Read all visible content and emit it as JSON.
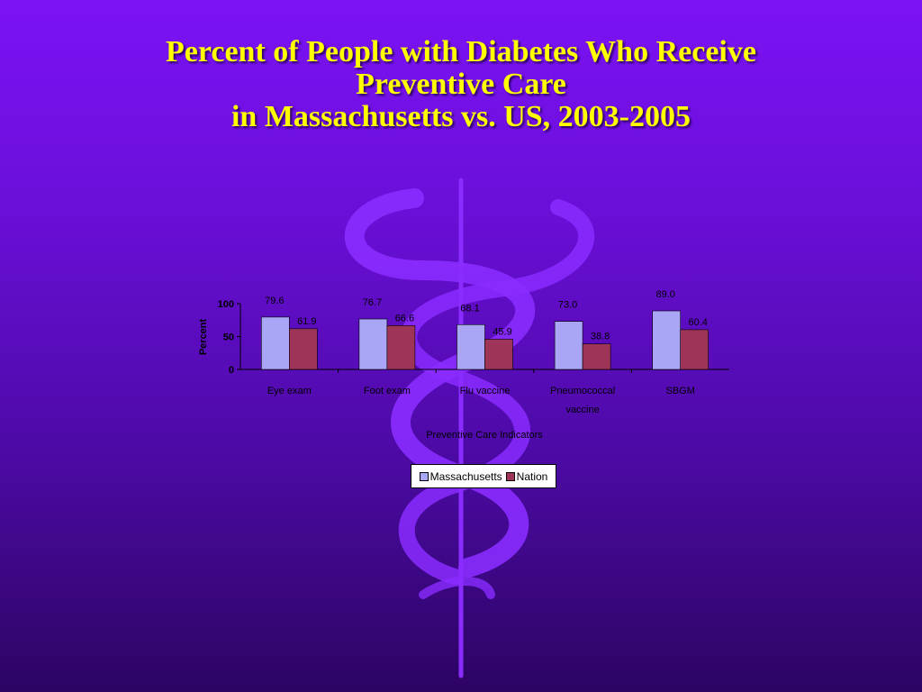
{
  "slide": {
    "title_lines": [
      "Percent of People with Diabetes Who Receive",
      "Preventive Care",
      "in Massachusetts vs. US, 2003-2005"
    ],
    "title_color": "#ffff00",
    "background_color": "#6a0fd8"
  },
  "chart_data": {
    "type": "bar",
    "categories": [
      "Eye exam",
      "Foot exam",
      "Flu vaccine",
      "Pneumococcal vaccine",
      "SBGM"
    ],
    "category_lines": [
      [
        "Eye exam"
      ],
      [
        "Foot exam"
      ],
      [
        "Flu vaccine"
      ],
      [
        "Pneumococcal",
        "vaccine"
      ],
      [
        "SBGM"
      ]
    ],
    "series": [
      {
        "name": "Massachusetts",
        "color": "#a9a7f5",
        "values": [
          79.6,
          76.7,
          68.1,
          73.0,
          89.0
        ],
        "labels": [
          "79.6",
          "76.7",
          "68.1",
          "73.0",
          "89.0"
        ]
      },
      {
        "name": "Nation",
        "color": "#9e3457",
        "values": [
          61.9,
          66.6,
          45.9,
          38.8,
          60.4
        ],
        "labels": [
          "61.9",
          "66.6",
          "45.9",
          "38.8",
          "60.4"
        ]
      }
    ],
    "xlabel": "Preventive Care Indicators",
    "ylabel": "Percent",
    "ylim": [
      0,
      100
    ],
    "yticks": [
      "0",
      "50",
      "100"
    ],
    "grid": false,
    "legend_position": "bottom"
  }
}
